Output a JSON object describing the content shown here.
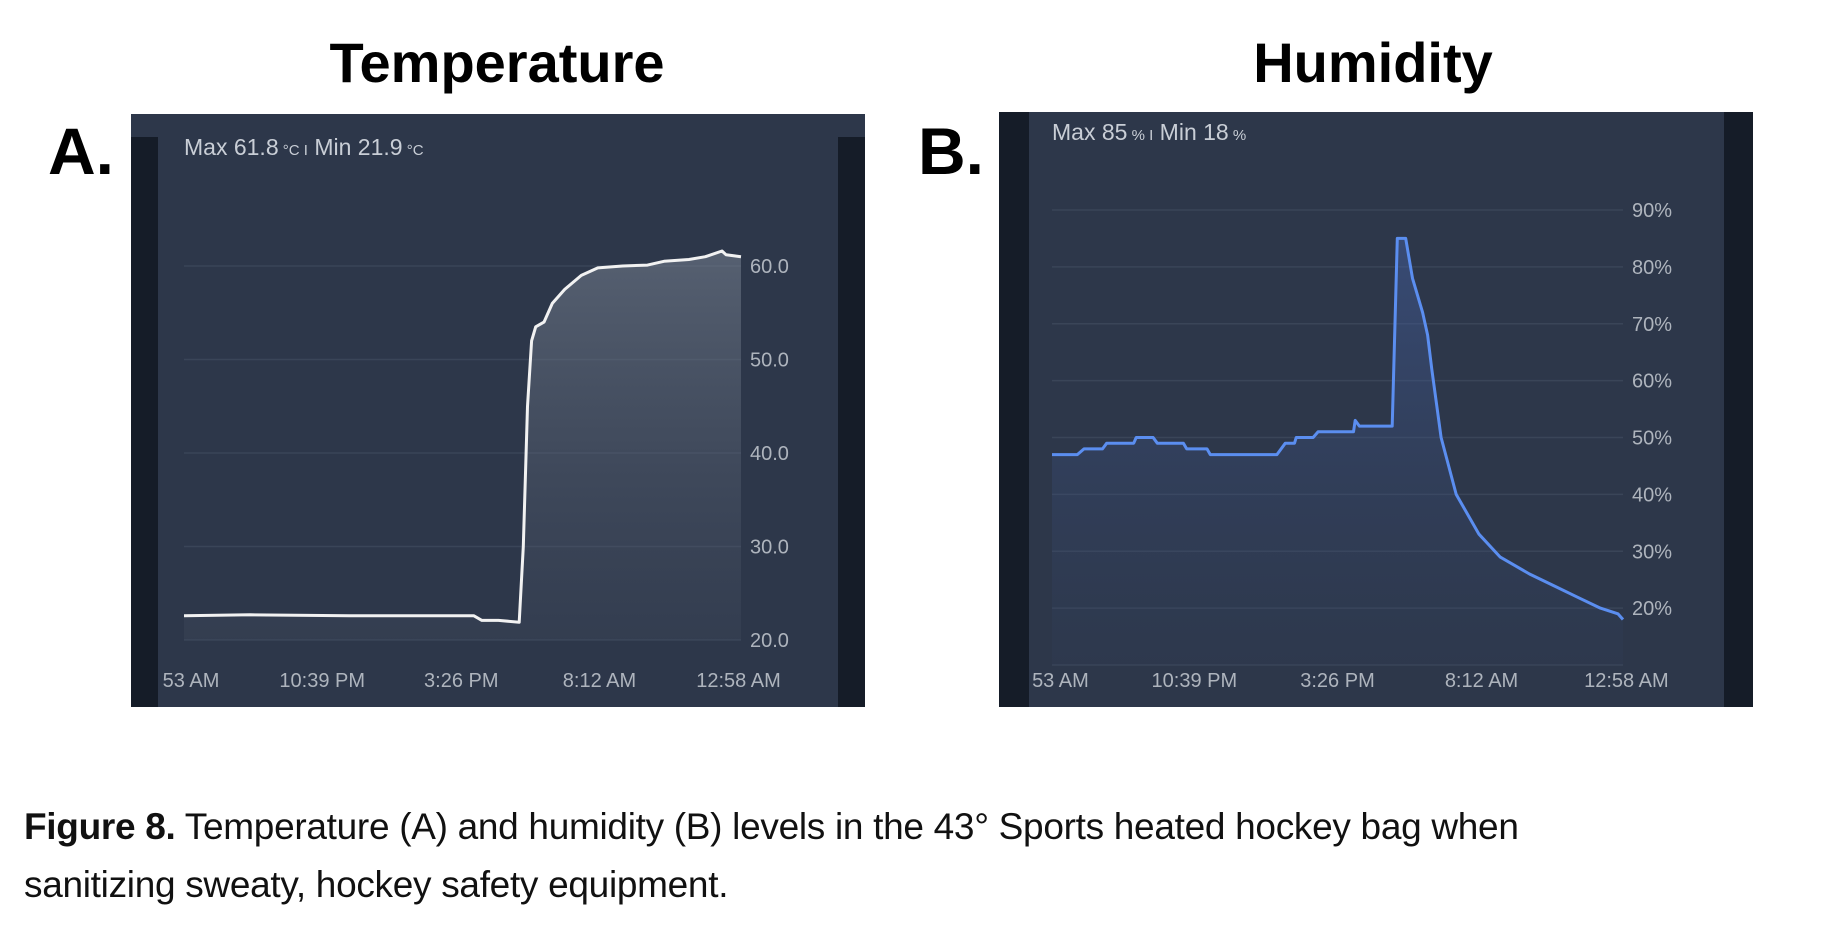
{
  "colors": {
    "panel_bg": "#2d374a",
    "strip": "#151c28",
    "grid": "#3a4558",
    "temp_line": "#f2f2f2",
    "hum_line": "#5b8ef0"
  },
  "chart_data": [
    {
      "type": "area",
      "panel_label": "A.",
      "title": "Temperature",
      "stats": {
        "max_label": "Max",
        "max_value": "61.8",
        "min_label": "Min",
        "min_value": "21.9",
        "unit": "°C",
        "separator": "I"
      },
      "xlabel": "",
      "ylabel": "",
      "x_unit": "hours since start",
      "xlim": [
        0,
        67.3
      ],
      "ylim": [
        20,
        60
      ],
      "yticks": [
        20,
        30,
        40,
        50,
        60
      ],
      "ytick_labels": [
        "20.0",
        "30.0",
        "40.0",
        "50.0",
        "60.0"
      ],
      "xticks": [
        0.85,
        16.7,
        33.5,
        50.2,
        67.0
      ],
      "xtick_labels": [
        "53 AM",
        "10:39 PM",
        "3:26 PM",
        "8:12 AM",
        "12:58 AM"
      ],
      "grid": true,
      "series": [
        {
          "name": "Temperature",
          "x": [
            0,
            8,
            20,
            35,
            36,
            38,
            40.5,
            41,
            41.5,
            42,
            42.5,
            43.5,
            44.5,
            46,
            48,
            50,
            53,
            56,
            58,
            61,
            63,
            65,
            65.5,
            67.3
          ],
          "y": [
            22.6,
            22.7,
            22.6,
            22.6,
            22.1,
            22.1,
            21.9,
            30,
            45,
            52,
            53.5,
            54,
            56,
            57.5,
            59,
            59.8,
            60,
            60.1,
            60.5,
            60.7,
            61,
            61.6,
            61.2,
            61
          ]
        }
      ]
    },
    {
      "type": "area",
      "panel_label": "B.",
      "title": "Humidity",
      "stats": {
        "max_label": "Max",
        "max_value": "85",
        "min_label": "Min",
        "min_value": "18",
        "unit": "%",
        "separator": "I"
      },
      "xlabel": "",
      "ylabel": "",
      "x_unit": "hours since start",
      "xlim": [
        0,
        67.8
      ],
      "ylim": [
        10,
        90
      ],
      "yticks": [
        10,
        20,
        30,
        40,
        50,
        60,
        70,
        80,
        90
      ],
      "ytick_labels": [
        "",
        "20%",
        "30%",
        "40%",
        "50%",
        "60%",
        "70%",
        "80%",
        "90%"
      ],
      "xticks": [
        1.0,
        16.9,
        33.9,
        51.0,
        68.2
      ],
      "xtick_labels": [
        "53 AM",
        "10:39 PM",
        "3:26 PM",
        "8:12 AM",
        "12:58 AM"
      ],
      "grid": true,
      "series": [
        {
          "name": "Humidity",
          "x": [
            0,
            3,
            3.8,
            6,
            6.5,
            9.7,
            10,
            12,
            12.5,
            15.6,
            16,
            18.4,
            18.8,
            26.7,
            27.7,
            28.8,
            29,
            31,
            31.6,
            35.8,
            36,
            36.5,
            40.4,
            41,
            42,
            42.8,
            44,
            44.6,
            45.1,
            46.2,
            48,
            50.7,
            53.2,
            56.7,
            59.5,
            62.3,
            65.1,
            67.2,
            67.8
          ],
          "y": [
            47,
            47,
            48,
            48,
            49,
            49,
            50,
            50,
            49,
            49,
            48,
            48,
            47,
            47,
            49,
            49,
            50,
            50,
            51,
            51,
            53,
            52,
            52,
            85,
            85,
            78,
            72,
            68,
            62,
            50,
            40,
            33,
            29,
            26,
            24,
            22,
            20,
            19,
            18
          ]
        }
      ]
    }
  ],
  "caption": {
    "label": "Figure 8.",
    "line1": " Temperature (A) and humidity (B) levels in the 43° Sports heated hockey bag when",
    "line2": "sanitizing sweaty, hockey safety equipment."
  }
}
